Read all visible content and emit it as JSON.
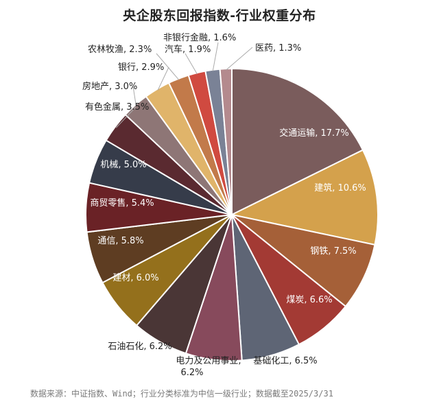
{
  "chart_data": {
    "type": "pie",
    "title": "央企股东回报指数-行业权重分布",
    "unit": "%",
    "slices": [
      {
        "label": "交通运输",
        "value": 17.7,
        "text": "交通运输, 17.7%",
        "color": "#7a5c5c",
        "label_color": "#ffffff"
      },
      {
        "label": "建筑",
        "value": 10.6,
        "text": "建筑, 10.6%",
        "color": "#d4a14c",
        "label_color": "#ffffff"
      },
      {
        "label": "钢铁",
        "value": 7.5,
        "text": "钢铁, 7.5%",
        "color": "#a56038",
        "label_color": "#ffffff"
      },
      {
        "label": "煤炭",
        "value": 6.6,
        "text": "煤炭, 6.6%",
        "color": "#a33a34",
        "label_color": "#ffffff"
      },
      {
        "label": "基础化工",
        "value": 6.5,
        "text": "基础化工, 6.5%",
        "color": "#5e6575",
        "label_color": "#222222"
      },
      {
        "label": "电力及公用事业",
        "value": 6.2,
        "text": "电力及公用事业,",
        "text2": "6.2%",
        "color": "#874a5c",
        "label_color": "#222222"
      },
      {
        "label": "石油石化",
        "value": 6.2,
        "text": "石油石化, 6.2%",
        "color": "#4a3636",
        "label_color": "#222222"
      },
      {
        "label": "建材",
        "value": 6.0,
        "text": "建材, 6.0%",
        "color": "#94701c",
        "label_color": "#ffffff"
      },
      {
        "label": "通信",
        "value": 5.8,
        "text": "通信, 5.8%",
        "color": "#5e3d22",
        "label_color": "#ffffff"
      },
      {
        "label": "商贸零售",
        "value": 5.4,
        "text": "商贸零售, 5.4%",
        "color": "#6a2226",
        "label_color": "#ffffff"
      },
      {
        "label": "机械",
        "value": 5.0,
        "text": "机械, 5.0%",
        "color": "#363c4a",
        "label_color": "#ffffff"
      },
      {
        "label": "有色金属",
        "value": 3.5,
        "text": "有色金属, 3.5%",
        "color": "#5a2a30",
        "label_color": "#222222"
      },
      {
        "label": "房地产",
        "value": 3.0,
        "text": "房地产, 3.0%",
        "color": "#8e7676",
        "label_color": "#222222"
      },
      {
        "label": "银行",
        "value": 2.9,
        "text": "银行, 2.9%",
        "color": "#e0b46a",
        "label_color": "#222222"
      },
      {
        "label": "农林牧渔",
        "value": 2.3,
        "text": "农林牧渔, 2.3%",
        "color": "#c27a4a",
        "label_color": "#222222"
      },
      {
        "label": "汽车",
        "value": 1.9,
        "text": "汽车, 1.9%",
        "color": "#d04a40",
        "label_color": "#222222"
      },
      {
        "label": "非银行金融",
        "value": 1.6,
        "text": "非银行金融, 1.6%",
        "color": "#7a8296",
        "label_color": "#222222"
      },
      {
        "label": "医药",
        "value": 1.3,
        "text": "医药, 1.3%",
        "color": "#b48a8e",
        "label_color": "#222222"
      }
    ]
  },
  "footer": {
    "source": "数据来源：中证指数、Wind；行业分类标准为中信一级行业；数据截至2025/3/31"
  }
}
